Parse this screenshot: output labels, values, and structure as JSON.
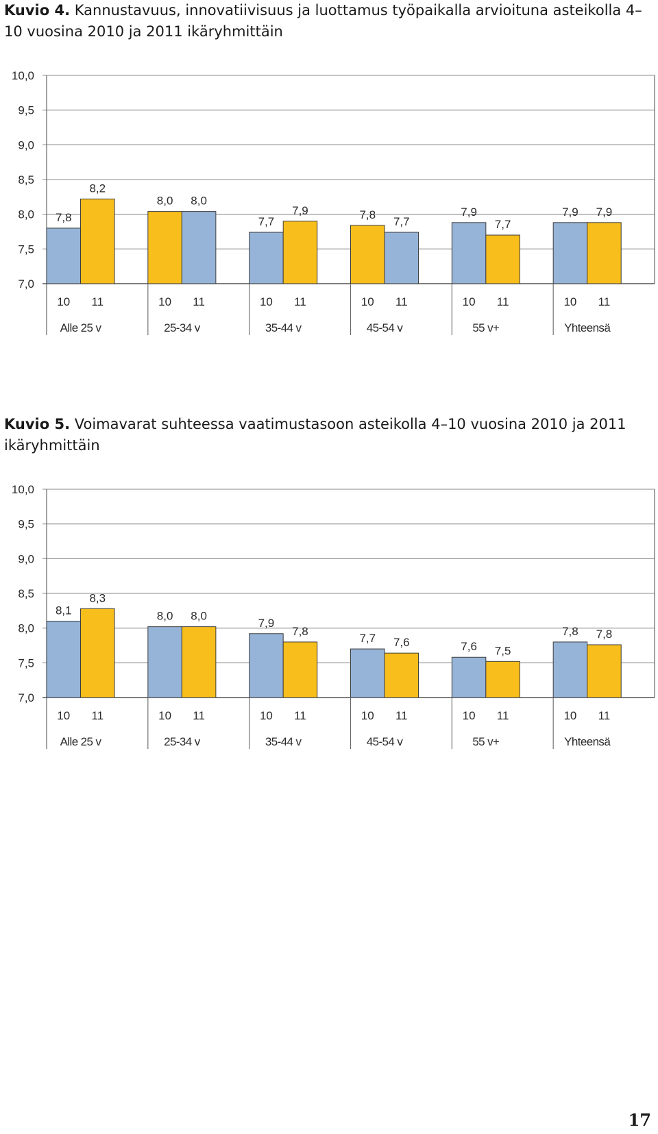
{
  "figures": [
    {
      "lead": "Kuvio 4.",
      "title": "Kannustavuus, innovatiivisuus ja luottamus työpaikalla arvioituna asteikolla 4–10 vuosina 2010 ja 2011 ikäryhmittäin"
    },
    {
      "lead": "Kuvio 5.",
      "title": "Voimavarat suhteessa vaatimustasoon asteikolla 4–10 vuosina 2010 ja 2011 ikäryhmittäin"
    }
  ],
  "chart_data": [
    {
      "type": "bar",
      "categories": [
        "Alle 25 v",
        "25-34 v",
        "35-44 v",
        "45-54 v",
        "55 v+",
        "Yhteensä"
      ],
      "sub_labels": [
        "10",
        "11"
      ],
      "ylim": [
        7.0,
        10.0
      ],
      "yticks": [
        "10,0",
        "9,5",
        "9,0",
        "8,5",
        "8,0",
        "7,5",
        "7,0"
      ],
      "series": [
        {
          "values": [
            7.8,
            8.04,
            7.74,
            7.84,
            7.88,
            7.88
          ]
        },
        {
          "values": [
            8.22,
            8.04,
            7.9,
            7.74,
            7.7,
            7.88
          ]
        }
      ],
      "data_labels": [
        [
          "7,8",
          "8,2"
        ],
        [
          "8,0",
          "8,0"
        ],
        [
          "7,7",
          "7,9"
        ],
        [
          "7,8",
          "7,7"
        ],
        [
          "7,9",
          "7,7"
        ],
        [
          "7,9",
          "7,9"
        ]
      ],
      "bar_colors": [
        [
          "#96b4d7",
          "#f8bf1c"
        ],
        [
          "#f8bf1c",
          "#96b4d7"
        ],
        [
          "#96b4d7",
          "#f8bf1c"
        ],
        [
          "#f8bf1c",
          "#96b4d7"
        ],
        [
          "#96b4d7",
          "#f8bf1c"
        ],
        [
          "#96b4d7",
          "#f8bf1c"
        ]
      ],
      "grid": true
    },
    {
      "type": "bar",
      "categories": [
        "Alle 25 v",
        "25-34 v",
        "35-44 v",
        "45-54 v",
        "55 v+",
        "Yhteensä"
      ],
      "sub_labels": [
        "10",
        "11"
      ],
      "ylim": [
        7.0,
        10.0
      ],
      "yticks": [
        "10,0",
        "9,5",
        "9,0",
        "8,5",
        "8,0",
        "7,5",
        "7,0"
      ],
      "series": [
        {
          "values": [
            8.1,
            8.02,
            7.92,
            7.7,
            7.58,
            7.8
          ]
        },
        {
          "values": [
            8.28,
            8.02,
            7.8,
            7.64,
            7.52,
            7.76
          ]
        }
      ],
      "data_labels": [
        [
          "8,1",
          "8,3"
        ],
        [
          "8,0",
          "8,0"
        ],
        [
          "7,9",
          "7,8"
        ],
        [
          "7,7",
          "7,6"
        ],
        [
          "7,6",
          "7,5"
        ],
        [
          "7,8",
          "7,8"
        ]
      ],
      "bar_colors": [
        [
          "#96b4d7",
          "#f8bf1c"
        ],
        [
          "#96b4d7",
          "#f8bf1c"
        ],
        [
          "#96b4d7",
          "#f8bf1c"
        ],
        [
          "#96b4d7",
          "#f8bf1c"
        ],
        [
          "#96b4d7",
          "#f8bf1c"
        ],
        [
          "#96b4d7",
          "#f8bf1c"
        ]
      ],
      "grid": true
    }
  ],
  "page_number": "17"
}
